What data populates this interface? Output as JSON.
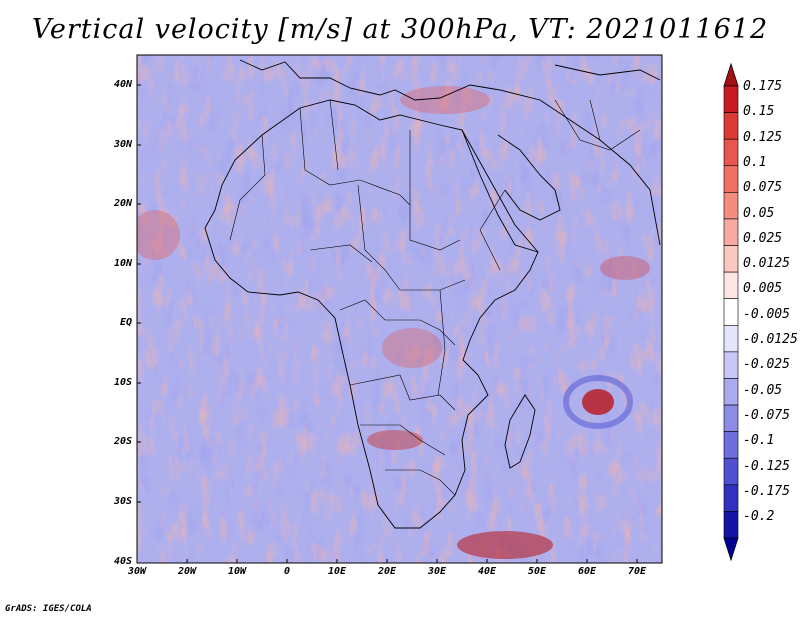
{
  "title": "Vertical velocity [m/s] at 300hPa, VT: 2021011612",
  "credit": "GrADS: IGES/COLA",
  "lat_ticks": [
    "40N",
    "30N",
    "20N",
    "10N",
    "EQ",
    "10S",
    "20S",
    "30S",
    "40S"
  ],
  "lon_ticks": [
    "30W",
    "20W",
    "10W",
    "0",
    "10E",
    "20E",
    "30E",
    "40E",
    "50E",
    "60E",
    "70E"
  ],
  "colorbar": {
    "labels": [
      "0.175",
      "0.15",
      "0.125",
      "0.1",
      "0.075",
      "0.05",
      "0.025",
      "0.0125",
      "0.005",
      "-0.005",
      "-0.0125",
      "-0.025",
      "-0.05",
      "-0.075",
      "-0.1",
      "-0.125",
      "-0.175",
      "-0.2"
    ],
    "colors": [
      "#a50f15",
      "#c81b22",
      "#dc3a35",
      "#e8564d",
      "#f07163",
      "#f48d80",
      "#f8aaa0",
      "#fbc8c0",
      "#fde6e2",
      "#ffffff",
      "#e4e4fb",
      "#c8c8f5",
      "#aaaaee",
      "#8c8ce6",
      "#6e6edc",
      "#5050d0",
      "#3232c0",
      "#1414a8",
      "#000096"
    ]
  },
  "field_colors": {
    "base": "#aeb0ee",
    "positive": "#f2a6a0",
    "strong_positive": "#b81f26",
    "negative": "#5a5fd6"
  }
}
